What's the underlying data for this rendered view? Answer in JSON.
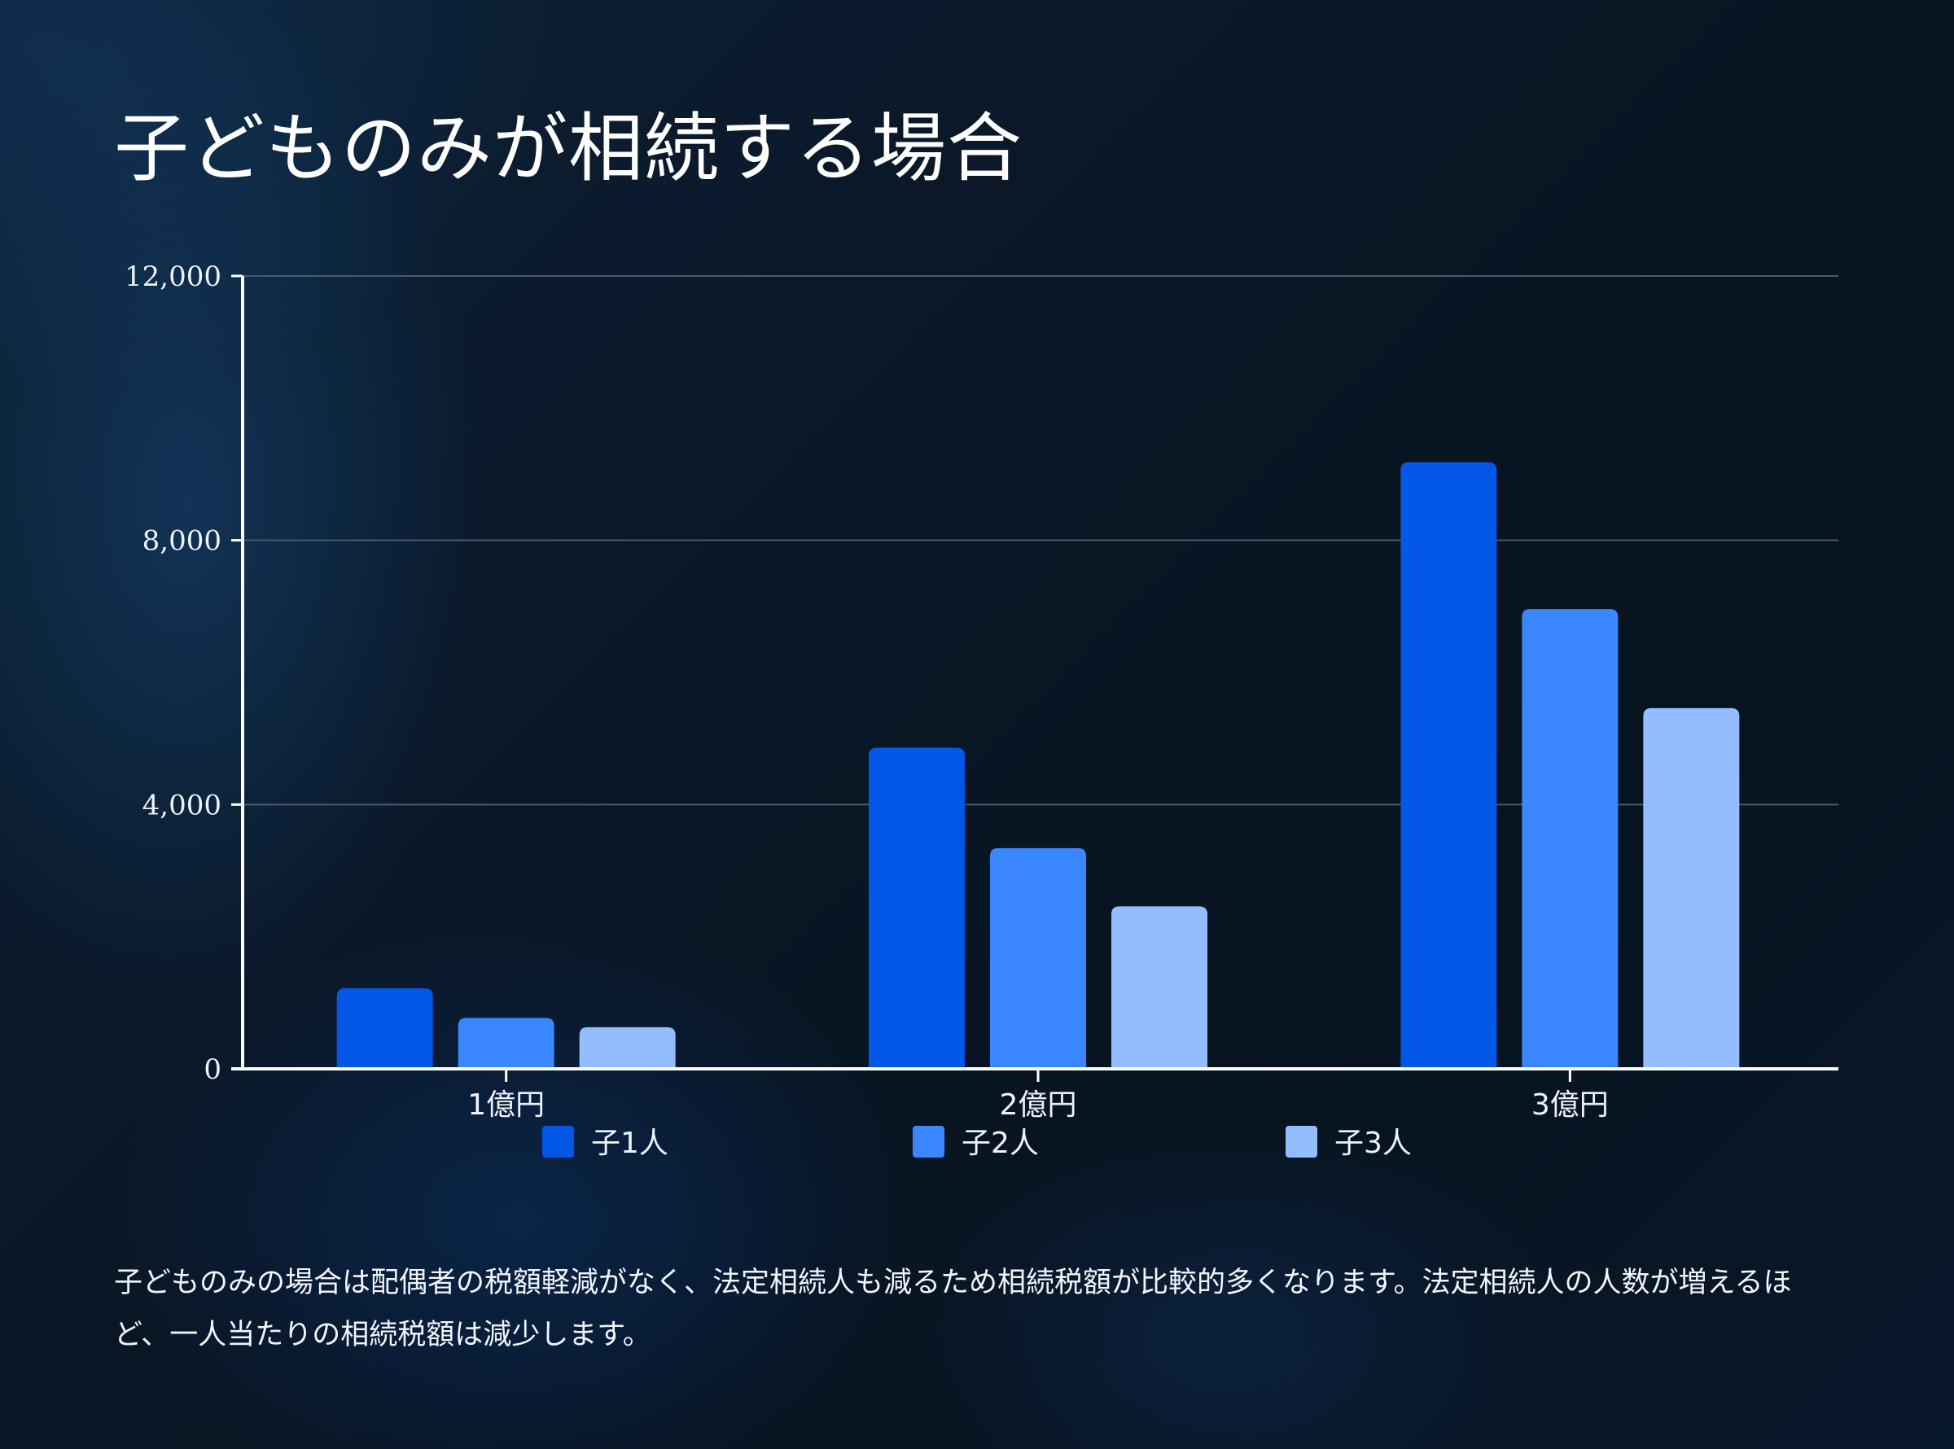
{
  "title": "子どものみが相続する場合",
  "chart_data": {
    "type": "bar",
    "title": "",
    "xlabel": "",
    "ylabel": "",
    "categories": [
      "1億円",
      "2億円",
      "3億円"
    ],
    "series": [
      {
        "name": "子1人",
        "color": "#0357e6",
        "values": [
          1220,
          4860,
          9180
        ]
      },
      {
        "name": "子2人",
        "color": "#3a86ff",
        "values": [
          770,
          3340,
          6960
        ]
      },
      {
        "name": "子3人",
        "color": "#93bdff",
        "values": [
          630,
          2460,
          5460
        ]
      }
    ],
    "ylim": [
      0,
      12000
    ],
    "yticks": [
      0,
      4000,
      8000,
      12000
    ],
    "ytick_labels": [
      "0",
      "4,000",
      "8,000",
      "12,000"
    ],
    "grid": true,
    "legend_position": "bottom"
  },
  "description": "子どものみの場合は配偶者の税額軽減がなく、法定相続人も減るため相続税額が比較的多くなります。法定相続人の人数が増えるほど、一人当たりの相続税額は減少します。"
}
